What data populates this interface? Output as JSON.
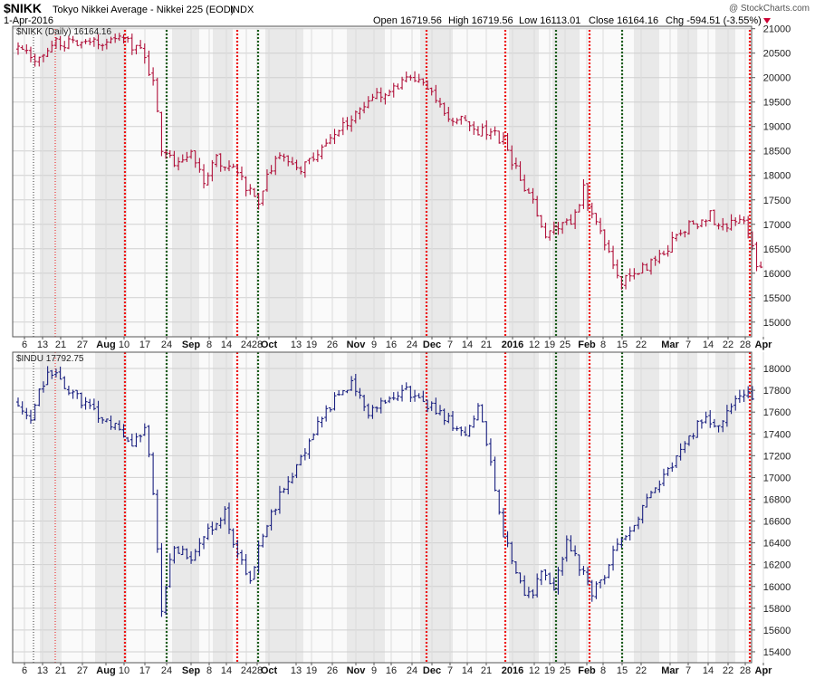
{
  "header": {
    "symbol": "$NIKK",
    "name": "Tokyo Nikkei Average - Nikkei 225 (EOD)",
    "exchange": "INDX",
    "date": "1-Apr-2016",
    "credit": "@ StockCharts.com",
    "open": "Open 16719.56",
    "high": "High 16719.56",
    "low": "Low 16113.01",
    "close": "Close 16164.16",
    "change": "Chg -594.51 (-3.55%)",
    "change_icon": "down-triangle-icon",
    "change_color": "#cc0033"
  },
  "chart_data": [
    {
      "type": "ohlc",
      "legend": "$NIKK (Daily) 16164.16",
      "color": "#b0103a",
      "ylim": [
        14700,
        21050
      ],
      "yticks": [
        15000,
        15500,
        16000,
        16500,
        17000,
        17500,
        18000,
        18500,
        19000,
        19500,
        20000,
        20500,
        21000
      ],
      "x_labels": [
        "6",
        "13",
        "21",
        "27",
        "Aug",
        "10",
        "17",
        "24",
        "Sep",
        "8",
        "14",
        "24",
        "28",
        "Oct",
        "13",
        "19",
        "26",
        "Nov",
        "9",
        "16",
        "24",
        "Dec",
        "7",
        "14",
        "21",
        "2016",
        "12",
        "19",
        "25",
        "Feb",
        "8",
        "15",
        "22",
        "Mar",
        "7",
        "14",
        "22",
        "28",
        "Apr"
      ],
      "x_label_bold": [
        "Aug",
        "Sep",
        "Oct",
        "Nov",
        "Dec",
        "2016",
        "Feb",
        "Mar",
        "Apr"
      ],
      "anchors": [
        [
          0,
          20600
        ],
        [
          5,
          20350
        ],
        [
          10,
          20700
        ],
        [
          18,
          20650
        ],
        [
          25,
          20900
        ],
        [
          30,
          20500
        ],
        [
          33,
          20000
        ],
        [
          35,
          18600
        ],
        [
          38,
          18300
        ],
        [
          42,
          18500
        ],
        [
          45,
          17900
        ],
        [
          48,
          18300
        ],
        [
          52,
          18100
        ],
        [
          55,
          17800
        ],
        [
          58,
          17400
        ],
        [
          61,
          18200
        ],
        [
          64,
          18400
        ],
        [
          67,
          18100
        ],
        [
          70,
          18300
        ],
        [
          74,
          18700
        ],
        [
          78,
          19000
        ],
        [
          82,
          19400
        ],
        [
          86,
          19600
        ],
        [
          90,
          19800
        ],
        [
          94,
          19950
        ],
        [
          97,
          19900
        ],
        [
          100,
          19600
        ],
        [
          104,
          19100
        ],
        [
          107,
          19200
        ],
        [
          110,
          18900
        ],
        [
          113,
          18850
        ],
        [
          116,
          18700
        ],
        [
          120,
          17900
        ],
        [
          123,
          17400
        ],
        [
          126,
          16800
        ],
        [
          129,
          16900
        ],
        [
          132,
          17100
        ],
        [
          135,
          17700
        ],
        [
          138,
          17000
        ],
        [
          141,
          16500
        ],
        [
          144,
          15800
        ],
        [
          147,
          16000
        ],
        [
          151,
          16200
        ],
        [
          155,
          16500
        ],
        [
          158,
          16900
        ],
        [
          162,
          17000
        ],
        [
          165,
          17200
        ],
        [
          168,
          16900
        ],
        [
          171,
          17100
        ],
        [
          174,
          16900
        ],
        [
          176,
          16200
        ]
      ],
      "seed": 7
    },
    {
      "type": "ohlc",
      "legend": "$INDU 17792.75",
      "color": "#1a2080",
      "ylim": [
        15300,
        18150
      ],
      "yticks": [
        15400,
        15600,
        15800,
        16000,
        16200,
        16400,
        16600,
        16800,
        17000,
        17200,
        17400,
        17600,
        17800,
        18000
      ],
      "x_labels": [
        "6",
        "13",
        "21",
        "27",
        "Aug",
        "10",
        "17",
        "24",
        "Sep",
        "8",
        "14",
        "24",
        "28",
        "Oct",
        "13",
        "19",
        "26",
        "Nov",
        "9",
        "16",
        "24",
        "Dec",
        "7",
        "14",
        "21",
        "2016",
        "12",
        "19",
        "25",
        "Feb",
        "8",
        "15",
        "22",
        "Mar",
        "7",
        "14",
        "22",
        "28",
        "Apr"
      ],
      "x_label_bold": [
        "Aug",
        "Sep",
        "Oct",
        "Nov",
        "Dec",
        "2016",
        "Feb",
        "Mar",
        "Apr"
      ],
      "anchors": [
        [
          0,
          17700
        ],
        [
          4,
          17550
        ],
        [
          8,
          18000
        ],
        [
          12,
          17850
        ],
        [
          16,
          17700
        ],
        [
          20,
          17550
        ],
        [
          24,
          17450
        ],
        [
          28,
          17300
        ],
        [
          31,
          17450
        ],
        [
          33,
          16900
        ],
        [
          35,
          15800
        ],
        [
          38,
          16400
        ],
        [
          42,
          16200
        ],
        [
          46,
          16500
        ],
        [
          50,
          16700
        ],
        [
          53,
          16250
        ],
        [
          56,
          16100
        ],
        [
          60,
          16600
        ],
        [
          64,
          16900
        ],
        [
          68,
          17200
        ],
        [
          72,
          17500
        ],
        [
          76,
          17700
        ],
        [
          80,
          17850
        ],
        [
          84,
          17600
        ],
        [
          88,
          17700
        ],
        [
          92,
          17800
        ],
        [
          96,
          17750
        ],
        [
          100,
          17600
        ],
        [
          104,
          17500
        ],
        [
          107,
          17400
        ],
        [
          110,
          17650
        ],
        [
          113,
          17100
        ],
        [
          116,
          16500
        ],
        [
          119,
          16100
        ],
        [
          122,
          15900
        ],
        [
          125,
          16100
        ],
        [
          128,
          16000
        ],
        [
          131,
          16400
        ],
        [
          134,
          16200
        ],
        [
          137,
          15950
        ],
        [
          140,
          16100
        ],
        [
          143,
          16400
        ],
        [
          147,
          16600
        ],
        [
          151,
          16850
        ],
        [
          155,
          17050
        ],
        [
          159,
          17300
        ],
        [
          163,
          17550
        ],
        [
          167,
          17500
        ],
        [
          171,
          17700
        ],
        [
          174,
          17750
        ]
      ],
      "seed": 13
    }
  ]
}
